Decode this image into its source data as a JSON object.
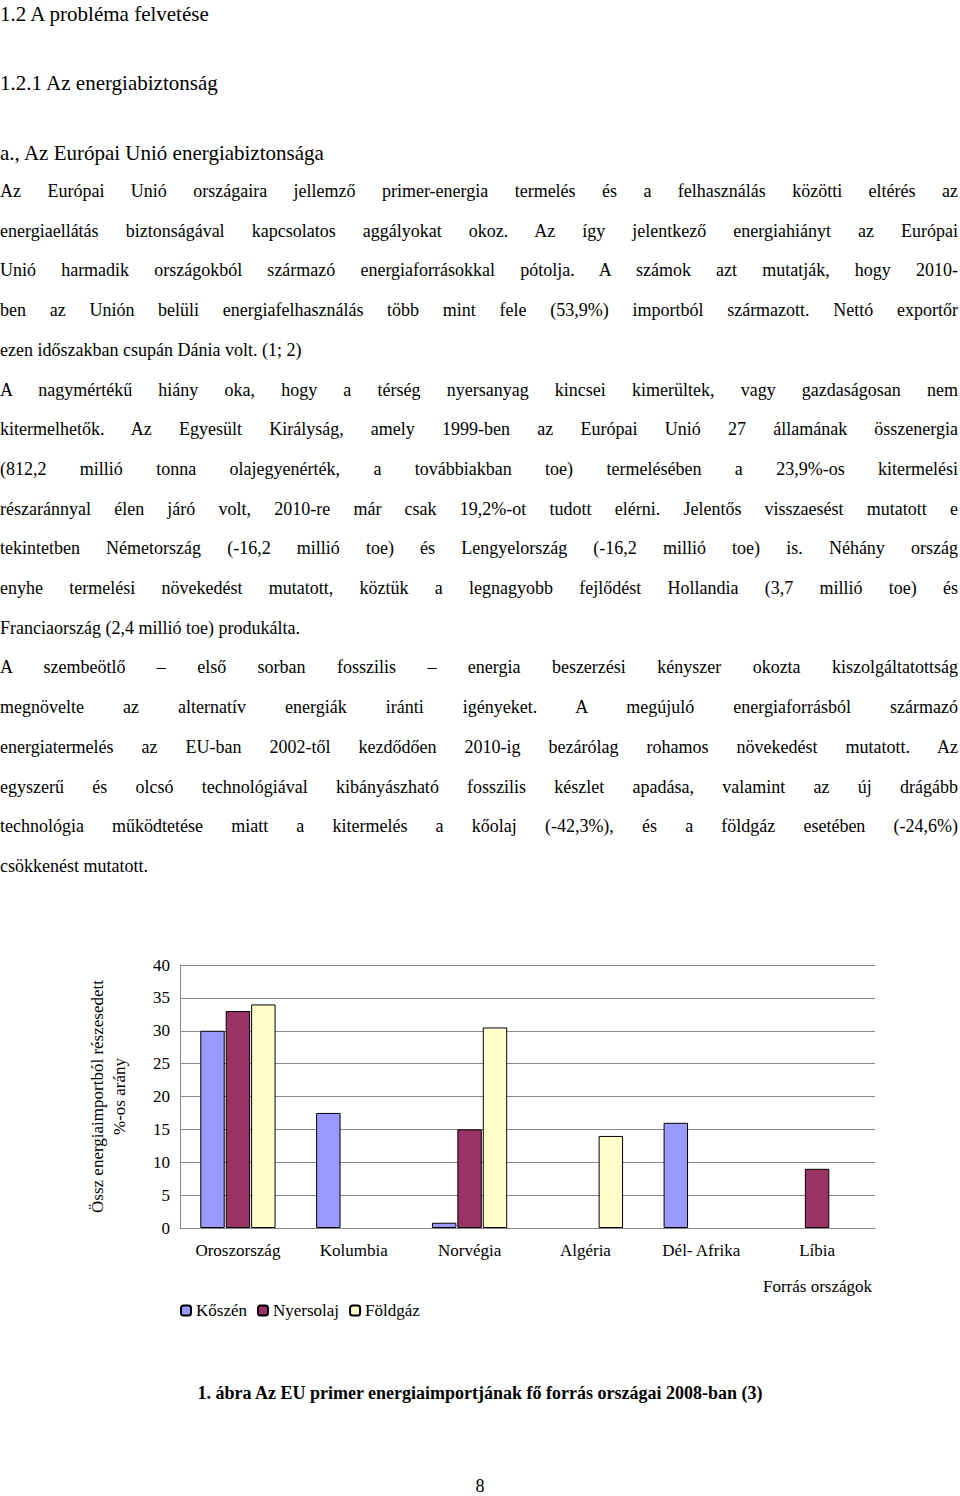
{
  "headings": [
    "1.2 A probléma felvetése",
    "1.2.1 Az energiabiztonság",
    "a., Az Európai Unió energiabiztonsága"
  ],
  "paragraphs": [
    [
      "Az Európai Unió országaira jellemző primer-energia termelés és a felhasználás közötti eltérés az",
      "energiaellátás biztonságával kapcsolatos aggályokat okoz. Az így jelentkező energiahiányt az Európai",
      "Unió harmadik országokból származó energiaforrásokkal pótolja. A számok azt mutatják, hogy 2010-",
      "ben az Unión belüli energiafelhasználás több mint fele (53,9%) importból származott. Nettó exportőr",
      "ezen időszakban csupán Dánia volt. (1; 2)"
    ],
    [
      "A nagymértékű hiány oka, hogy a térség nyersanyag kincsei kimerültek, vagy gazdaságosan nem",
      "kitermelhetők. Az Egyesült Királyság, amely 1999-ben az Európai Unió 27 államának összenergia",
      "(812,2 millió tonna olajegyenérték, a továbbiakban toe) termelésében a 23,9%-os kitermelési",
      "részaránnyal élen járó volt, 2010-re már csak 19,2%-ot tudott elérni. Jelentős visszaesést mutatott e",
      "tekintetben Németország (-16,2 millió toe) és Lengyelország (-16,2 millió toe) is. Néhány ország",
      "enyhe termelési növekedést mutatott, köztük a legnagyobb fejlődést Hollandia (3,7 millió toe) és",
      "Franciaország (2,4 millió toe) produkálta."
    ],
    [
      "A szembeötlő – első sorban fosszilis – energia beszerzési kényszer okozta kiszolgáltatottság",
      "megnövelte az alternatív energiák iránti igényeket. A megújuló energiaforrásból származó",
      "energiatermelés az EU-ban 2002-től kezdődően 2010-ig bezárólag rohamos növekedést mutatott. Az",
      "egyszerű és olcsó technológiával kibányászható fosszilis készlet apadása, valamint az új drágább",
      "technológia működtetése miatt a kitermelés a kőolaj (-42,3%), és a földgáz esetében (-24,6%)",
      "csökkenést mutatott."
    ]
  ],
  "chart_data": {
    "type": "bar",
    "categories": [
      "Oroszország",
      "Kolumbia",
      "Norvégia",
      "Algéria",
      "Dél- Afrika",
      "Líbia"
    ],
    "series": [
      {
        "name": "Kőszén",
        "color": "#9999ff",
        "values": [
          30,
          17.5,
          0.8,
          null,
          16,
          null
        ]
      },
      {
        "name": "Nyersolaj",
        "color": "#993366",
        "values": [
          33,
          null,
          15,
          null,
          null,
          9
        ]
      },
      {
        "name": "Földgáz",
        "color": "#ffffcc",
        "values": [
          34,
          null,
          30.5,
          14,
          null,
          null
        ]
      }
    ],
    "ylabel": [
      "Össz energiaimportból részesedett",
      "%-os arány"
    ],
    "xlabel": "Forrás országok",
    "ylim": [
      0,
      40
    ],
    "yticks": [
      0,
      5,
      10,
      15,
      20,
      25,
      30,
      35,
      40
    ],
    "grid": true,
    "legend": "bottom"
  },
  "caption": "1. ábra Az EU primer energiaimportjának fő forrás országai 2008-ban (3)",
  "page_number": 8
}
